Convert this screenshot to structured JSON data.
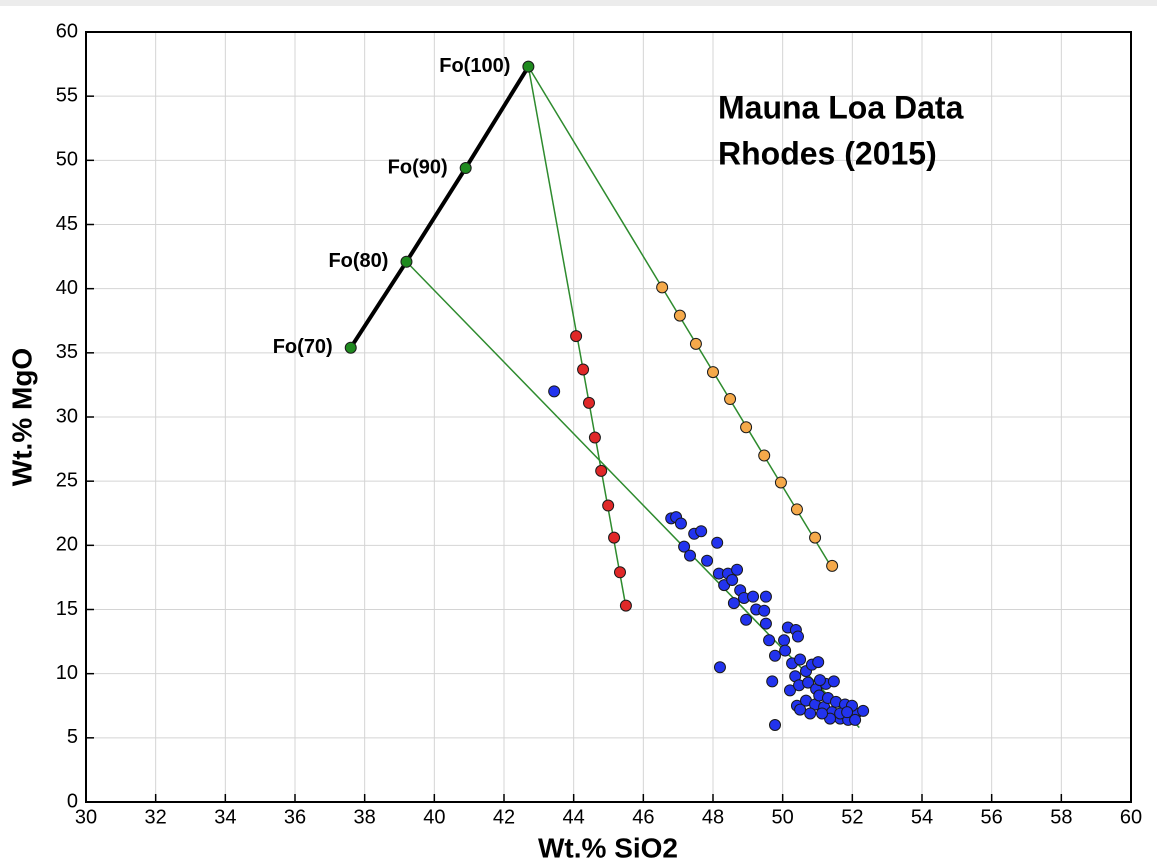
{
  "chart_data": {
    "type": "scatter",
    "annotation_lines": [
      "Mauna Loa Data",
      "Rhodes (2015)"
    ],
    "x_label": "Wt.% SiO2",
    "y_label": "Wt.% MgO",
    "xlim": [
      30,
      60
    ],
    "ylim": [
      0,
      60
    ],
    "xticks": [
      30,
      32,
      34,
      36,
      38,
      40,
      42,
      44,
      46,
      48,
      50,
      52,
      54,
      56,
      58,
      60
    ],
    "yticks": [
      0,
      5,
      10,
      15,
      20,
      25,
      30,
      35,
      40,
      45,
      50,
      55,
      60
    ],
    "grid": true,
    "series": [
      {
        "style": "line",
        "color": "#2e8b2e",
        "x": [
          42.7,
          45.5
        ],
        "values": [
          57.3,
          15.2
        ]
      },
      {
        "style": "line",
        "color": "#2e8b2e",
        "x": [
          42.7,
          51.4
        ],
        "values": [
          57.3,
          18.3
        ]
      },
      {
        "style": "line",
        "color": "#2e8b2e",
        "x": [
          39.2,
          52.2
        ],
        "values": [
          42.1,
          5.8
        ]
      },
      {
        "style": "line-markers",
        "color": "#1f8a1f",
        "line_color": "#000000",
        "x": [
          37.6,
          39.2,
          40.9,
          42.7
        ],
        "values": [
          35.4,
          42.1,
          49.4,
          57.3
        ],
        "point_labels": [
          "Fo(70)",
          "Fo(80)",
          "Fo(90)",
          "Fo(100)"
        ]
      },
      {
        "style": "markers",
        "color": "#e02828",
        "x": [
          44.07,
          44.27,
          44.44,
          44.61,
          44.79,
          44.99,
          45.16,
          45.33,
          45.5
        ],
        "values": [
          36.3,
          33.7,
          31.1,
          28.4,
          25.8,
          23.1,
          20.6,
          17.9,
          15.3
        ]
      },
      {
        "style": "markers",
        "color": "#f5a94a",
        "x": [
          46.54,
          47.05,
          47.51,
          48.0,
          48.49,
          48.95,
          49.47,
          49.95,
          50.41,
          50.93,
          51.42
        ],
        "values": [
          40.1,
          37.9,
          35.7,
          33.5,
          31.4,
          29.2,
          27.0,
          24.9,
          22.8,
          20.6,
          18.4
        ]
      },
      {
        "style": "markers",
        "color": "#2233ee",
        "x": [
          43.44,
          46.8,
          46.94,
          47.08,
          47.46,
          47.66,
          47.17,
          47.34,
          47.83,
          48.12,
          48.17,
          48.43,
          48.69,
          48.32,
          48.55,
          48.78,
          48.6,
          48.89,
          49.15,
          49.52,
          48.95,
          49.24,
          49.47,
          49.52,
          49.61,
          49.78,
          50.04,
          50.15,
          50.38,
          50.44,
          50.07,
          50.27,
          50.5,
          50.36,
          50.67,
          50.84,
          51.02,
          50.21,
          50.47,
          50.73,
          50.96,
          51.24,
          51.47,
          50.41,
          50.67,
          50.93,
          51.19,
          51.42,
          51.65,
          51.88,
          52.1,
          52.31,
          51.05,
          51.3,
          51.53,
          51.79,
          51.99,
          51.65,
          51.36,
          51.13,
          50.79,
          50.5,
          51.07,
          51.85,
          52.08,
          49.78,
          48.2,
          49.7
        ],
        "values": [
          32.0,
          22.1,
          22.2,
          21.7,
          20.9,
          21.1,
          19.9,
          19.2,
          18.8,
          20.2,
          17.8,
          17.8,
          18.1,
          16.9,
          17.3,
          16.5,
          15.5,
          15.9,
          16.0,
          16.0,
          14.2,
          15.0,
          14.9,
          13.9,
          12.6,
          11.4,
          12.6,
          13.6,
          13.4,
          12.9,
          11.8,
          10.8,
          11.1,
          9.8,
          10.2,
          10.7,
          10.9,
          8.7,
          9.1,
          9.3,
          8.8,
          9.2,
          9.4,
          7.5,
          7.9,
          7.6,
          7.4,
          7.0,
          6.5,
          6.4,
          6.9,
          7.1,
          8.3,
          8.1,
          7.8,
          7.6,
          7.5,
          6.9,
          6.5,
          6.9,
          6.9,
          7.2,
          9.5,
          7.0,
          6.4,
          6.0,
          10.5,
          9.4
        ]
      }
    ]
  }
}
